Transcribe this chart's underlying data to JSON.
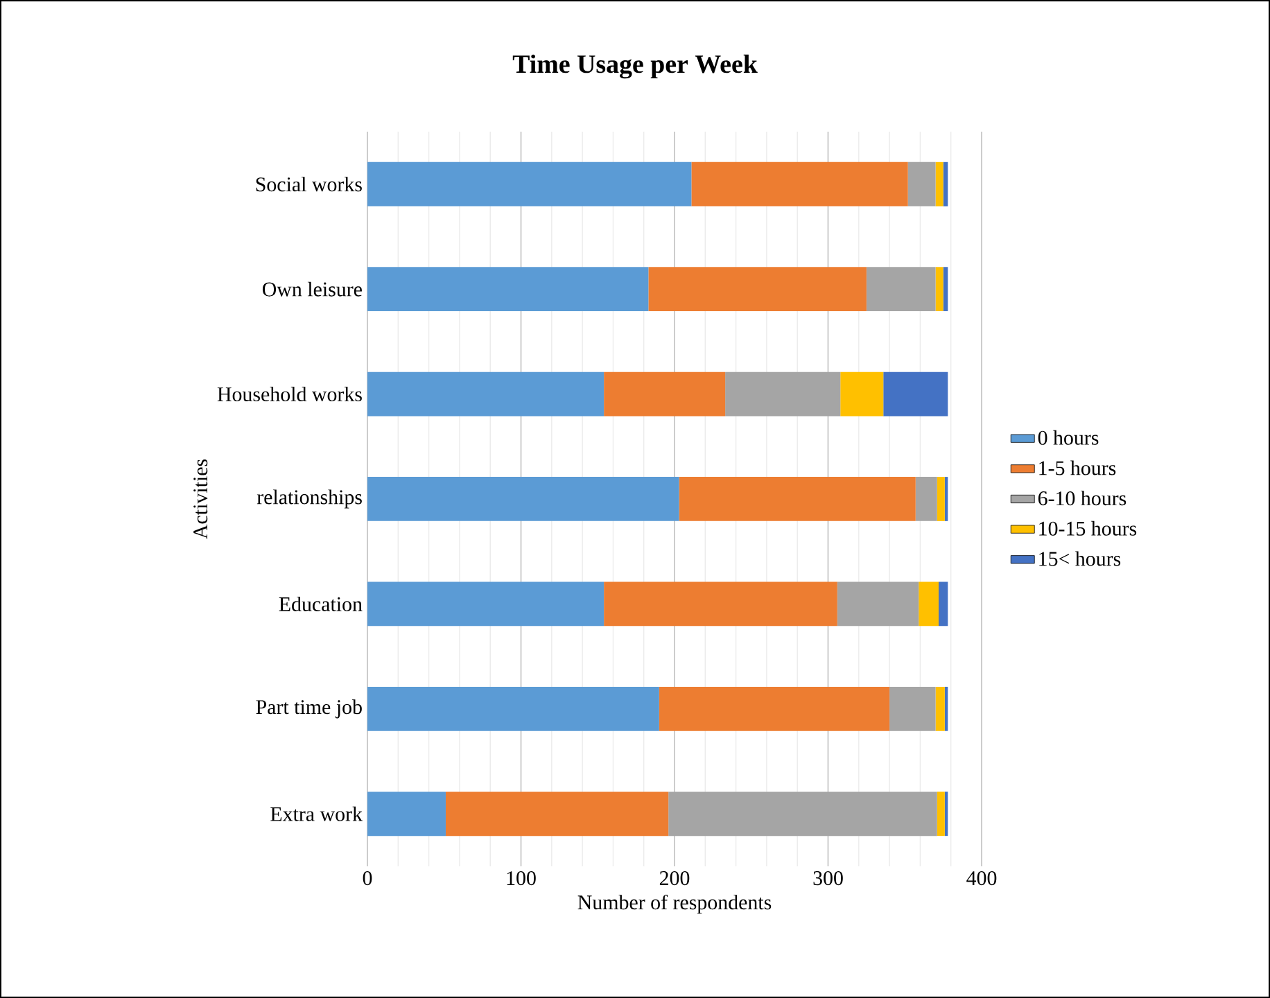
{
  "chart_data": {
    "type": "bar",
    "orientation": "horizontal",
    "stacked": true,
    "title": "Time Usage per Week",
    "xlabel": "Number of respondents",
    "ylabel": "Activities",
    "categories": [
      "Social works",
      "Own leisure",
      "Household works",
      "relationships",
      "Education",
      "Part time job",
      "Extra work"
    ],
    "series": [
      {
        "name": "0 hours",
        "color": "#5b9bd5",
        "values": [
          211,
          183,
          154,
          203,
          154,
          190,
          51
        ]
      },
      {
        "name": "1-5 hours",
        "color": "#ed7d31",
        "values": [
          141,
          142,
          79,
          154,
          152,
          150,
          145
        ]
      },
      {
        "name": "6-10 hours",
        "color": "#a5a5a5",
        "values": [
          18,
          45,
          75,
          14,
          53,
          30,
          175
        ]
      },
      {
        "name": "10-15 hours",
        "color": "#ffc000",
        "values": [
          5,
          5,
          28,
          5,
          13,
          6,
          5
        ]
      },
      {
        "name": "15< hours",
        "color": "#4472c4",
        "values": [
          3,
          3,
          42,
          2,
          6,
          2,
          2
        ]
      }
    ],
    "xlim": [
      0,
      400
    ],
    "xticks": [
      0,
      100,
      200,
      300,
      400
    ],
    "grid": "x",
    "legend": "right"
  }
}
